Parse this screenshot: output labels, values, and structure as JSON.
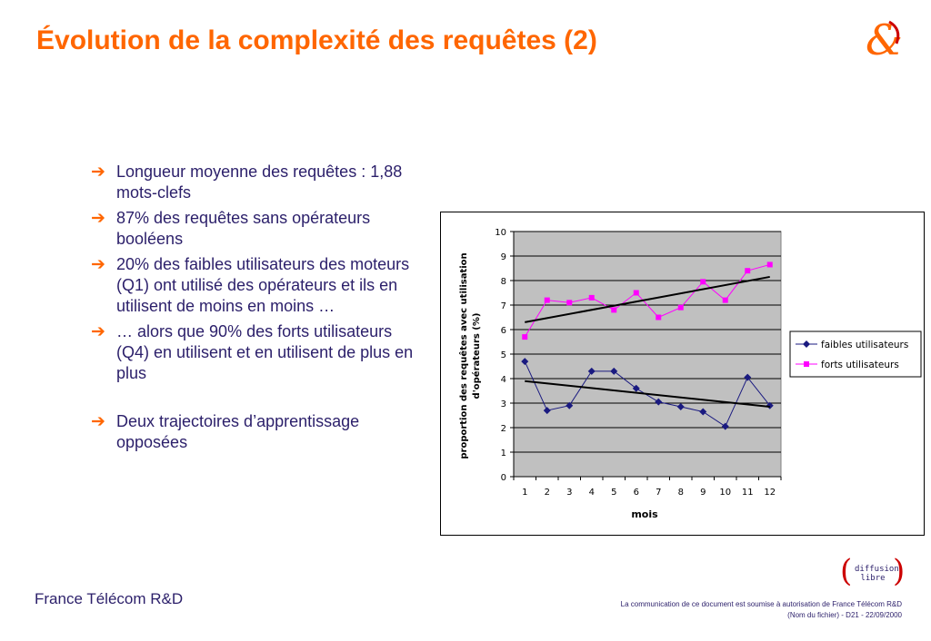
{
  "slide": {
    "title": "Évolution de la complexité des requêtes (2)"
  },
  "bullets": [
    {
      "text": "Longueur moyenne des requêtes  : 1,88 mots-clefs"
    },
    {
      "text": "87% des requêtes sans opérateurs booléens"
    },
    {
      "text": "20% des faibles utilisateurs des moteurs (Q1) ont utilisé  des opérateurs et ils en utilisent de moins en moins …"
    },
    {
      "text": "… alors que 90% des forts utilisateurs (Q4) en utilisent et en utilisent de plus en plus"
    },
    {
      "text": "Deux trajectoires d’apprentissage opposées"
    }
  ],
  "footer": {
    "company": "France Télécom R&D",
    "badge_line1": "diffusion",
    "badge_line2": "libre",
    "notice": "La communication de ce document est soumise à autorisation de France Télécom R&D",
    "file_info": "(Nom du fichier)  - D21 - 22/09/2000"
  },
  "colors": {
    "title": "#ff6600",
    "text": "#2b1f6a",
    "series_faibles": "#1a1a80",
    "series_forts": "#ff00ff",
    "plot_bg": "#c0c0c0"
  },
  "chart_data": {
    "type": "line",
    "x": [
      1,
      2,
      3,
      4,
      5,
      6,
      7,
      8,
      9,
      10,
      11,
      12
    ],
    "series": [
      {
        "name": "faibles utilisateurs",
        "marker": "diamond",
        "color": "#1a1a80",
        "values": [
          4.7,
          2.7,
          2.9,
          4.3,
          4.3,
          3.6,
          3.05,
          2.85,
          2.65,
          2.05,
          4.05,
          2.9
        ],
        "trendline": [
          3.9,
          2.85
        ]
      },
      {
        "name": "forts utilisateurs",
        "marker": "square",
        "color": "#ff00ff",
        "values": [
          5.7,
          7.2,
          7.1,
          7.3,
          6.8,
          7.5,
          6.5,
          6.9,
          7.95,
          7.2,
          8.4,
          8.65
        ],
        "trendline": [
          6.3,
          8.15
        ]
      }
    ],
    "xlabel": "mois",
    "ylabel_line1": "proportion des requêtes avec utilisation",
    "ylabel_line2": "d'opérateurs (%)",
    "ylim": [
      0,
      10
    ],
    "yticks": [
      0,
      1,
      2,
      3,
      4,
      5,
      6,
      7,
      8,
      9,
      10
    ],
    "grid": true,
    "legend_position": "right"
  }
}
